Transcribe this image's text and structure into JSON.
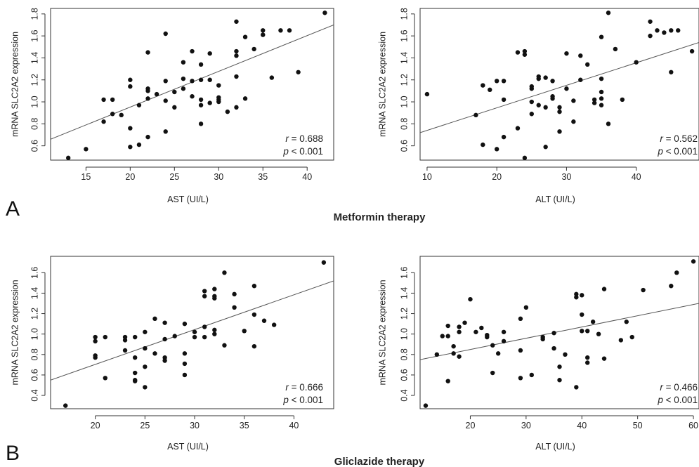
{
  "figure": {
    "label_a": "A",
    "label_b": "B",
    "caption_a": "Metformin therapy",
    "caption_b": "Gliclazide therapy"
  },
  "chart_data": [
    {
      "id": "metformin-ast",
      "type": "scatter",
      "xlabel": "AST (UI/L)",
      "ylabel": "mRNA SLC2A2 expression",
      "xlim": [
        11,
        43
      ],
      "ylim": [
        0.47,
        1.85
      ],
      "xticks": [
        15,
        20,
        25,
        30,
        35,
        40
      ],
      "yticks": [
        0.6,
        0.8,
        1.0,
        1.2,
        1.4,
        1.6,
        1.8
      ],
      "r_label": "r",
      "r_value": "= 0.688",
      "p_label": "p",
      "p_value": "< 0.001",
      "fit_line": {
        "x": [
          11,
          43
        ],
        "y": [
          0.66,
          1.7
        ]
      },
      "points": [
        [
          13,
          0.49
        ],
        [
          15,
          0.57
        ],
        [
          17,
          0.82
        ],
        [
          17,
          1.02
        ],
        [
          18,
          0.89
        ],
        [
          18,
          1.02
        ],
        [
          19,
          0.88
        ],
        [
          20,
          0.59
        ],
        [
          20,
          0.76
        ],
        [
          20,
          1.14
        ],
        [
          20,
          1.2
        ],
        [
          21,
          0.61
        ],
        [
          21,
          0.97
        ],
        [
          22,
          0.68
        ],
        [
          22,
          1.03
        ],
        [
          22,
          1.1
        ],
        [
          22,
          1.12
        ],
        [
          22,
          1.45
        ],
        [
          23,
          1.07
        ],
        [
          24,
          0.73
        ],
        [
          24,
          1.01
        ],
        [
          24,
          1.19
        ],
        [
          24,
          1.62
        ],
        [
          25,
          0.95
        ],
        [
          25,
          1.09
        ],
        [
          26,
          1.12
        ],
        [
          26,
          1.21
        ],
        [
          26,
          1.36
        ],
        [
          27,
          1.05
        ],
        [
          27,
          1.19
        ],
        [
          27,
          1.46
        ],
        [
          28,
          0.8
        ],
        [
          28,
          0.97
        ],
        [
          28,
          1.02
        ],
        [
          28,
          1.2
        ],
        [
          28,
          1.34
        ],
        [
          29,
          0.99
        ],
        [
          29,
          1.2
        ],
        [
          29,
          1.44
        ],
        [
          30,
          1.0
        ],
        [
          30,
          1.02
        ],
        [
          30,
          1.04
        ],
        [
          30,
          1.15
        ],
        [
          31,
          0.91
        ],
        [
          32,
          0.95
        ],
        [
          32,
          1.23
        ],
        [
          32,
          1.42
        ],
        [
          32,
          1.46
        ],
        [
          32,
          1.73
        ],
        [
          33,
          1.03
        ],
        [
          33,
          1.59
        ],
        [
          34,
          1.48
        ],
        [
          35,
          1.61
        ],
        [
          35,
          1.65
        ],
        [
          36,
          1.22
        ],
        [
          37,
          1.65
        ],
        [
          38,
          1.65
        ],
        [
          39,
          1.27
        ],
        [
          42,
          1.81
        ]
      ]
    },
    {
      "id": "metformin-alt",
      "type": "scatter",
      "xlabel": "ALT (UI/L)",
      "ylabel": "mRNA SLC2A2 expression",
      "xlim": [
        9,
        49
      ],
      "ylim": [
        0.47,
        1.85
      ],
      "xticks": [
        10,
        20,
        30,
        40
      ],
      "yticks": [
        0.6,
        0.8,
        1.0,
        1.2,
        1.4,
        1.6,
        1.8
      ],
      "r_label": "r",
      "r_value": "= 0.562",
      "p_label": "p",
      "p_value": "< 0.001",
      "fit_line": {
        "x": [
          9,
          49
        ],
        "y": [
          0.72,
          1.54
        ]
      },
      "points": [
        [
          10,
          1.07
        ],
        [
          17,
          0.88
        ],
        [
          18,
          0.61
        ],
        [
          18,
          1.15
        ],
        [
          19,
          1.11
        ],
        [
          20,
          0.57
        ],
        [
          20,
          1.19
        ],
        [
          21,
          0.68
        ],
        [
          21,
          1.02
        ],
        [
          21,
          1.19
        ],
        [
          23,
          0.76
        ],
        [
          23,
          1.45
        ],
        [
          24,
          0.49
        ],
        [
          24,
          1.43
        ],
        [
          24,
          1.46
        ],
        [
          25,
          0.89
        ],
        [
          25,
          1.0
        ],
        [
          25,
          1.12
        ],
        [
          25,
          1.14
        ],
        [
          26,
          0.97
        ],
        [
          26,
          1.21
        ],
        [
          26,
          1.23
        ],
        [
          27,
          0.59
        ],
        [
          27,
          0.95
        ],
        [
          27,
          1.22
        ],
        [
          28,
          1.03
        ],
        [
          28,
          1.05
        ],
        [
          28,
          1.19
        ],
        [
          29,
          0.73
        ],
        [
          29,
          0.91
        ],
        [
          29,
          0.95
        ],
        [
          30,
          1.12
        ],
        [
          30,
          1.44
        ],
        [
          31,
          0.82
        ],
        [
          31,
          1.01
        ],
        [
          32,
          1.2
        ],
        [
          32,
          1.42
        ],
        [
          33,
          1.34
        ],
        [
          34,
          0.99
        ],
        [
          34,
          1.02
        ],
        [
          35,
          0.97
        ],
        [
          35,
          1.03
        ],
        [
          35,
          1.09
        ],
        [
          35,
          1.21
        ],
        [
          35,
          1.59
        ],
        [
          36,
          0.8
        ],
        [
          36,
          1.81
        ],
        [
          37,
          1.48
        ],
        [
          38,
          1.02
        ],
        [
          40,
          1.36
        ],
        [
          42,
          1.6
        ],
        [
          42,
          1.73
        ],
        [
          43,
          1.65
        ],
        [
          44,
          1.63
        ],
        [
          45,
          1.27
        ],
        [
          45,
          1.65
        ],
        [
          46,
          1.65
        ],
        [
          48,
          1.46
        ]
      ]
    },
    {
      "id": "gliclazide-ast",
      "type": "scatter",
      "xlabel": "AST (UI/L)",
      "ylabel": "mRNA SLC2A2 expression",
      "xlim": [
        15.5,
        44
      ],
      "ylim": [
        0.27,
        1.76
      ],
      "xticks": [
        20,
        25,
        30,
        35,
        40
      ],
      "yticks": [
        0.4,
        0.6,
        0.8,
        1.0,
        1.2,
        1.4,
        1.6
      ],
      "r_label": "r",
      "r_value": "= 0.666",
      "p_label": "p",
      "p_value": "< 0.001",
      "fit_line": {
        "x": [
          15.5,
          44
        ],
        "y": [
          0.55,
          1.52
        ]
      },
      "points": [
        [
          17,
          0.3
        ],
        [
          20,
          0.77
        ],
        [
          20,
          0.79
        ],
        [
          20,
          0.93
        ],
        [
          20,
          0.97
        ],
        [
          21,
          0.57
        ],
        [
          21,
          0.97
        ],
        [
          23,
          0.84
        ],
        [
          23,
          0.94
        ],
        [
          23,
          0.97
        ],
        [
          24,
          0.54
        ],
        [
          24,
          0.55
        ],
        [
          24,
          0.62
        ],
        [
          24,
          0.77
        ],
        [
          24,
          0.97
        ],
        [
          25,
          0.48
        ],
        [
          25,
          0.68
        ],
        [
          25,
          0.86
        ],
        [
          25,
          1.02
        ],
        [
          26,
          0.81
        ],
        [
          26,
          1.15
        ],
        [
          27,
          0.74
        ],
        [
          27,
          0.77
        ],
        [
          27,
          0.95
        ],
        [
          27,
          1.11
        ],
        [
          28,
          0.98
        ],
        [
          29,
          0.6
        ],
        [
          29,
          0.71
        ],
        [
          29,
          0.81
        ],
        [
          29,
          1.1
        ],
        [
          30,
          0.97
        ],
        [
          30,
          1.02
        ],
        [
          31,
          0.97
        ],
        [
          31,
          1.07
        ],
        [
          31,
          1.37
        ],
        [
          31,
          1.42
        ],
        [
          32,
          1.0
        ],
        [
          32,
          1.04
        ],
        [
          32,
          1.35
        ],
        [
          32,
          1.37
        ],
        [
          32,
          1.44
        ],
        [
          33,
          0.89
        ],
        [
          33,
          1.6
        ],
        [
          34,
          1.26
        ],
        [
          34,
          1.39
        ],
        [
          35,
          1.03
        ],
        [
          36,
          0.88
        ],
        [
          36,
          1.19
        ],
        [
          36,
          1.47
        ],
        [
          37,
          1.13
        ],
        [
          38,
          1.09
        ],
        [
          43,
          1.7
        ]
      ]
    },
    {
      "id": "gliclazide-alt",
      "type": "scatter",
      "xlabel": "ALT (UI/L)",
      "ylabel": "mRNA SLC2A2 expression",
      "xlim": [
        11,
        61
      ],
      "ylim": [
        0.27,
        1.76
      ],
      "xticks": [
        20,
        30,
        40,
        50,
        60
      ],
      "yticks": [
        0.4,
        0.6,
        0.8,
        1.0,
        1.2,
        1.4,
        1.6
      ],
      "r_label": "r",
      "r_value": "= 0.466",
      "p_label": "p",
      "p_value": "< 0.001",
      "fit_line": {
        "x": [
          11,
          61
        ],
        "y": [
          0.75,
          1.3
        ]
      },
      "points": [
        [
          12,
          0.3
        ],
        [
          14,
          0.8
        ],
        [
          15,
          0.98
        ],
        [
          16,
          0.54
        ],
        [
          16,
          0.98
        ],
        [
          16,
          1.08
        ],
        [
          17,
          0.81
        ],
        [
          17,
          0.88
        ],
        [
          18,
          0.78
        ],
        [
          18,
          1.02
        ],
        [
          18,
          1.07
        ],
        [
          19,
          1.11
        ],
        [
          20,
          1.34
        ],
        [
          21,
          1.02
        ],
        [
          22,
          1.06
        ],
        [
          23,
          0.97
        ],
        [
          23,
          0.99
        ],
        [
          24,
          0.62
        ],
        [
          24,
          0.89
        ],
        [
          25,
          0.81
        ],
        [
          26,
          0.93
        ],
        [
          26,
          1.02
        ],
        [
          29,
          0.57
        ],
        [
          29,
          0.84
        ],
        [
          29,
          1.15
        ],
        [
          30,
          1.26
        ],
        [
          31,
          0.6
        ],
        [
          33,
          0.95
        ],
        [
          33,
          0.97
        ],
        [
          35,
          0.86
        ],
        [
          35,
          1.01
        ],
        [
          36,
          0.55
        ],
        [
          36,
          0.68
        ],
        [
          37,
          0.8
        ],
        [
          39,
          0.48
        ],
        [
          39,
          1.36
        ],
        [
          39,
          1.39
        ],
        [
          40,
          1.03
        ],
        [
          40,
          1.19
        ],
        [
          40,
          1.38
        ],
        [
          41,
          0.72
        ],
        [
          41,
          0.77
        ],
        [
          41,
          1.03
        ],
        [
          42,
          1.12
        ],
        [
          43,
          1.0
        ],
        [
          44,
          0.76
        ],
        [
          44,
          1.44
        ],
        [
          47,
          0.94
        ],
        [
          48,
          1.12
        ],
        [
          49,
          0.97
        ],
        [
          51,
          1.43
        ],
        [
          56,
          1.47
        ],
        [
          57,
          1.6
        ],
        [
          60,
          1.71
        ]
      ]
    }
  ]
}
